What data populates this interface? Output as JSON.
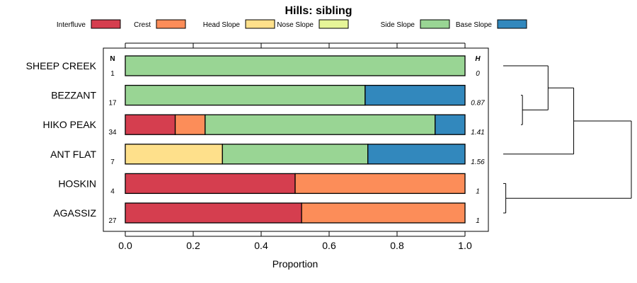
{
  "chart_data": {
    "type": "stacked-bar-horizontal",
    "title": "Hills: sibling",
    "xlabel": "Proportion",
    "xlim": [
      0,
      1
    ],
    "xticks": [
      "0.0",
      "0.2",
      "0.4",
      "0.6",
      "0.8",
      "1.0"
    ],
    "xtick_values": [
      0,
      0.2,
      0.4,
      0.6,
      0.8,
      1.0
    ],
    "n_header": "N",
    "h_header": "H",
    "legend": [
      {
        "name": "Interfluve",
        "color": "#d53e4f"
      },
      {
        "name": "Crest",
        "color": "#fc8d59"
      },
      {
        "name": "Head Slope",
        "color": "#fee08b"
      },
      {
        "name": "Nose Slope",
        "color": "#e6f598"
      },
      {
        "name": "Side Slope",
        "color": "#99d594"
      },
      {
        "name": "Base Slope",
        "color": "#3288bd"
      }
    ],
    "rows": [
      {
        "label": "SHEEP CREEK",
        "n": "1",
        "h": "0",
        "segments": [
          0,
          0,
          0,
          0,
          1.0,
          0
        ]
      },
      {
        "label": "BEZZANT",
        "n": "17",
        "h": "0.87",
        "segments": [
          0,
          0,
          0,
          0,
          0.706,
          0.294
        ]
      },
      {
        "label": "HIKO PEAK",
        "n": "34",
        "h": "1.41",
        "segments": [
          0.147,
          0.088,
          0,
          0,
          0.677,
          0.088
        ]
      },
      {
        "label": "ANT FLAT",
        "n": "7",
        "h": "1.56",
        "segments": [
          0,
          0,
          0.286,
          0,
          0.428,
          0.286
        ]
      },
      {
        "label": "HOSKIN",
        "n": "4",
        "h": "1",
        "segments": [
          0.5,
          0.5,
          0,
          0,
          0,
          0
        ]
      },
      {
        "label": "AGASSIZ",
        "n": "27",
        "h": "1",
        "segments": [
          0.519,
          0.481,
          0,
          0,
          0,
          0
        ]
      }
    ],
    "dendrogram": {
      "merges": [
        {
          "rows": [
            "BEZZANT",
            "HIKO PEAK"
          ],
          "height": 0.15
        },
        {
          "rows": [
            "SHEEP CREEK",
            "BEZZANT+HIKO PEAK"
          ],
          "height": 0.35
        },
        {
          "rows": [
            "HOSKIN",
            "AGASSIZ"
          ],
          "height": 0.02
        },
        {
          "rows": [
            "top-cluster",
            "ANT FLAT"
          ],
          "height": 0.55
        },
        {
          "rows": [
            "all-upper",
            "HOSKIN+AGASSIZ"
          ],
          "height": 1.0
        }
      ]
    }
  }
}
